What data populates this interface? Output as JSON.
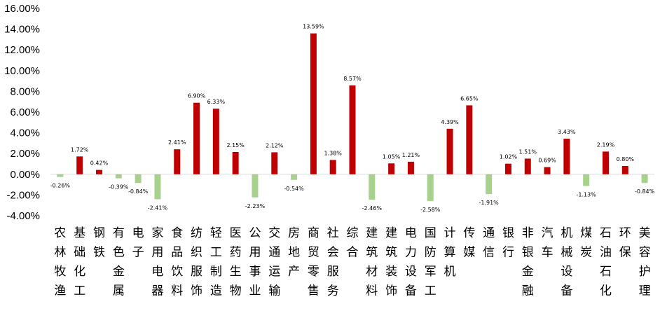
{
  "chart_data": {
    "type": "bar",
    "title": "",
    "xlabel": "",
    "ylabel": "",
    "ylim": [
      -4,
      16
    ],
    "y_ticks": [
      "16.00%",
      "14.00%",
      "12.00%",
      "10.00%",
      "8.00%",
      "6.00%",
      "4.00%",
      "2.00%",
      "0.00%",
      "-2.00%",
      "-4.00%"
    ],
    "grid": false,
    "legend": "none",
    "colors": {
      "positive": "#C00000",
      "negative": "#A9D18E"
    },
    "categories": [
      "农林牧渔",
      "基础化工",
      "钢铁",
      "有色金属",
      "电子",
      "家用电器",
      "食品饮料",
      "纺织服饰",
      "轻工制造",
      "医药生物",
      "公用事业",
      "交通运输",
      "房地产",
      "商贸零售",
      "社会服务",
      "综合",
      "建筑材料",
      "建筑装饰",
      "电力设备",
      "国防军工",
      "计算机",
      "传媒",
      "通信",
      "银行",
      "非银金融",
      "汽车",
      "机械设备",
      "煤炭",
      "石油石化",
      "环保",
      "美容护理"
    ],
    "values": [
      -0.26,
      1.72,
      0.42,
      -0.39,
      -0.84,
      -2.41,
      2.41,
      6.9,
      6.33,
      2.15,
      -2.23,
      2.12,
      -0.54,
      13.59,
      1.38,
      8.57,
      -2.46,
      1.05,
      1.21,
      -2.58,
      4.39,
      6.65,
      -1.91,
      1.02,
      1.51,
      0.69,
      3.43,
      -1.13,
      2.19,
      0.8,
      -0.84
    ],
    "data_labels": [
      "-0.26%",
      "1.72%",
      "0.42%",
      "-0.39%",
      "-0.84%",
      "-2.41%",
      "2.41%",
      "6.90%",
      "6.33%",
      "2.15%",
      "-2.23%",
      "2.12%",
      "-0.54%",
      "13.59%",
      "1.38%",
      "8.57%",
      "-2.46%",
      "1.05%",
      "1.21%",
      "-2.58%",
      "4.39%",
      "6.65%",
      "-1.91%",
      "1.02%",
      "1.51%",
      "0.69%",
      "3.43%",
      "-1.13%",
      "2.19%",
      "0.80%",
      "-0.84%"
    ]
  }
}
